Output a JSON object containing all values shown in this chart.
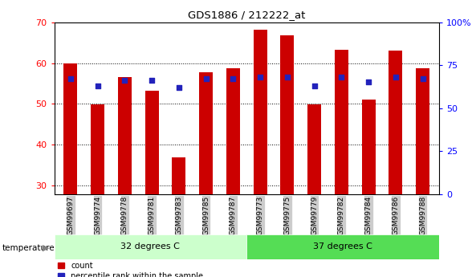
{
  "title": "GDS1886 / 212222_at",
  "categories": [
    "GSM99697",
    "GSM99774",
    "GSM99778",
    "GSM99781",
    "GSM99783",
    "GSM99785",
    "GSM99787",
    "GSM99773",
    "GSM99775",
    "GSM99779",
    "GSM99782",
    "GSM99784",
    "GSM99786",
    "GSM99788"
  ],
  "count_values": [
    60.0,
    49.8,
    56.5,
    53.3,
    37.0,
    57.8,
    58.8,
    68.2,
    66.8,
    49.8,
    63.2,
    51.0,
    63.0,
    58.8
  ],
  "percentile_pct": [
    67,
    63,
    66,
    66,
    62,
    67,
    67,
    68,
    68,
    63,
    68,
    65,
    68,
    67
  ],
  "group1_label": "32 degrees C",
  "group2_label": "37 degrees C",
  "group1_count": 7,
  "group2_count": 7,
  "bar_color": "#cc0000",
  "dot_color": "#2222bb",
  "group1_bg": "#ccffcc",
  "group2_bg": "#55dd55",
  "ylim_left": [
    28,
    70
  ],
  "ylim_right": [
    0,
    100
  ],
  "yticks_left": [
    30,
    40,
    50,
    60,
    70
  ],
  "yticks_right": [
    0,
    25,
    50,
    75,
    100
  ],
  "ytick_labels_right": [
    "0",
    "25",
    "50",
    "75",
    "100%"
  ],
  "background_color": "#ffffff",
  "bar_width": 0.5,
  "xticklabel_bg": "#cccccc"
}
